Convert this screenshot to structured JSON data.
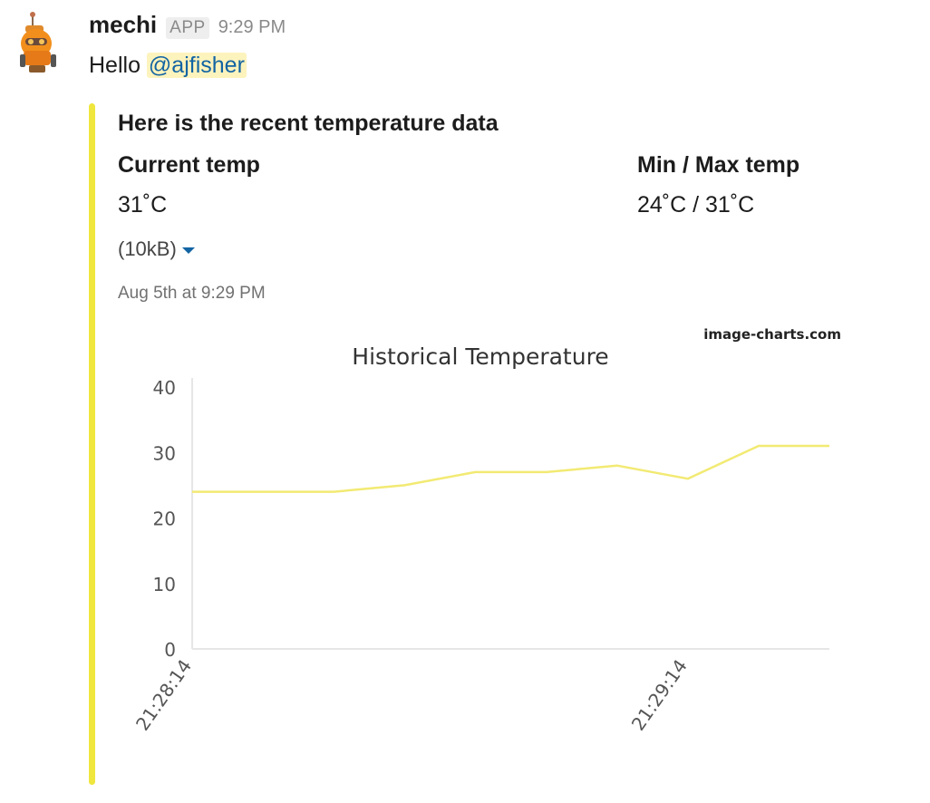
{
  "message": {
    "username": "mechi",
    "badge": "APP",
    "time": "9:29 PM",
    "text_prefix": "Hello ",
    "mention": "@ajfisher"
  },
  "attachment": {
    "accent_color": "#efe63e",
    "title": "Here is the recent temperature data",
    "fields": [
      {
        "title": "Current temp",
        "value": "31˚C"
      },
      {
        "title": "Min / Max temp",
        "value": "24˚C / 31˚C"
      }
    ],
    "file_size": "(10kB)",
    "timestamp": "Aug 5th at 9:29 PM",
    "watermark": "image-charts.com"
  },
  "chart_data": {
    "type": "line",
    "title": "Historical Temperature",
    "xlabel": "",
    "ylabel": "",
    "ylim": [
      0,
      40
    ],
    "yticks": [
      0,
      10,
      20,
      30,
      40
    ],
    "x_tick_labels": [
      "21:28:14",
      "21:29:14"
    ],
    "series": [
      {
        "color": "#f2ea73",
        "values": [
          24,
          24,
          24,
          25,
          27,
          27,
          28,
          26,
          31,
          31
        ]
      }
    ],
    "grid": false
  }
}
